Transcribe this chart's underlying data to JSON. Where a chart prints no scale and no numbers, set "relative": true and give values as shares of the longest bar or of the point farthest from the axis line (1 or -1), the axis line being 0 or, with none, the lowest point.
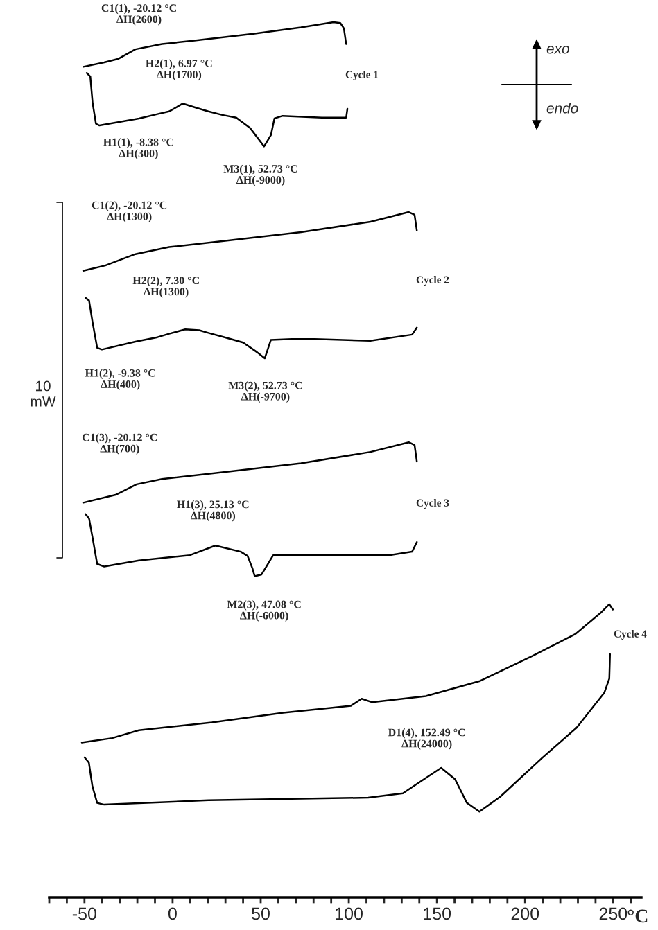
{
  "chart_data": {
    "type": "line",
    "relative": true,
    "xlabel": "°C",
    "xlim": [
      -70,
      266
    ],
    "tick_labels": "x",
    "xticks": [
      {
        "value": -70,
        "label": null
      },
      {
        "value": -60,
        "label": null
      },
      -50,
      {
        "value": -40,
        "label": null
      },
      {
        "value": -30,
        "label": null
      },
      {
        "value": -20,
        "label": null
      },
      {
        "value": -10,
        "label": null
      },
      0,
      {
        "value": 10,
        "label": null
      },
      {
        "value": 20,
        "label": null
      },
      {
        "value": 30,
        "label": null
      },
      {
        "value": 40,
        "label": null
      },
      50,
      {
        "value": 60,
        "label": null
      },
      {
        "value": 70,
        "label": null
      },
      {
        "value": 80,
        "label": null
      },
      {
        "value": 90,
        "label": null
      },
      100,
      {
        "value": 110,
        "label": null
      },
      {
        "value": 120,
        "label": null
      },
      {
        "value": 130,
        "label": null
      },
      {
        "value": 140,
        "label": null
      },
      150,
      {
        "value": 160,
        "label": null
      },
      {
        "value": 170,
        "label": null
      },
      {
        "value": 180,
        "label": null
      },
      {
        "value": 190,
        "label": null
      },
      200,
      {
        "value": 210,
        "label": null
      },
      {
        "value": 220,
        "label": null
      },
      {
        "value": 230,
        "label": null
      },
      {
        "value": 240,
        "label": null
      },
      250,
      {
        "value": 260,
        "label": null
      }
    ],
    "series": [
      {
        "color": "#000000",
        "x": [
          -50.7,
          -38.8,
          -31.0,
          -21.1,
          -6.0,
          12.4,
          46.6,
          72.9,
          91.3,
          95.2,
          97.2,
          98.5
        ],
        "values": [
          0.949,
          0.954,
          0.958,
          0.969,
          0.975,
          0.979,
          0.987,
          0.994,
          1.0,
          0.999,
          0.993,
          0.975
        ]
      },
      {
        "color": "#000000",
        "x": [
          -48.7,
          -46.7,
          -45.4,
          -43.5,
          -41.5,
          -19.1,
          -8.6,
          -2.0,
          5.8,
          13.7,
          20.3,
          28.2,
          36.1,
          44.0,
          51.9,
          55.8,
          57.8,
          62.4,
          84.7,
          98.5,
          99.2
        ],
        "values": [
          0.942,
          0.938,
          0.908,
          0.884,
          0.882,
          0.89,
          0.895,
          0.898,
          0.907,
          0.902,
          0.898,
          0.894,
          0.891,
          0.879,
          0.858,
          0.871,
          0.89,
          0.893,
          0.891,
          0.891,
          0.901
        ]
      },
      {
        "color": "#000000",
        "x": [
          -50.7,
          -38.2,
          -21.1,
          -2.0,
          33.4,
          72.9,
          112.3,
          134.0,
          137.3,
          138.6
        ],
        "values": [
          0.716,
          0.722,
          0.735,
          0.743,
          0.751,
          0.76,
          0.772,
          0.783,
          0.78,
          0.762
        ]
      },
      {
        "color": "#000000",
        "x": [
          -49.4,
          -47.4,
          -45.4,
          -42.8,
          -40.1,
          -21.1,
          -8.6,
          -2.0,
          7.2,
          15.1,
          20.3,
          29.5,
          40.0,
          47.9,
          52.3,
          55.8,
          67.6,
          80.6,
          112.2,
          135.9,
          138.6
        ],
        "values": [
          0.685,
          0.682,
          0.657,
          0.628,
          0.626,
          0.635,
          0.64,
          0.644,
          0.649,
          0.648,
          0.645,
          0.64,
          0.634,
          0.623,
          0.616,
          0.637,
          0.638,
          0.638,
          0.636,
          0.643,
          0.651
        ]
      },
      {
        "color": "#000000",
        "x": [
          -50.7,
          -32.3,
          -20.4,
          -6.0,
          33.4,
          72.9,
          112.3,
          134.0,
          137.3,
          138.6
        ],
        "values": [
          0.451,
          0.46,
          0.472,
          0.478,
          0.487,
          0.496,
          0.509,
          0.52,
          0.517,
          0.498
        ]
      },
      {
        "color": "#000000",
        "x": [
          -49.4,
          -47.4,
          -45.4,
          -42.8,
          -38.8,
          -19.1,
          9.8,
          24.3,
          38.7,
          42.6,
          45.3,
          46.6,
          50.5,
          53.2,
          57.1,
          72.9,
          122.8,
          135.9,
          138.6
        ],
        "values": [
          0.438,
          0.433,
          0.411,
          0.381,
          0.378,
          0.385,
          0.391,
          0.402,
          0.395,
          0.39,
          0.376,
          0.367,
          0.369,
          0.378,
          0.391,
          0.391,
          0.391,
          0.395,
          0.406
        ]
      },
      {
        "color": "#000000",
        "x": [
          -51.5,
          -34.3,
          -19.1,
          22.3,
          62.8,
          101.2,
          107.3,
          113.3,
          143.7,
          174.0,
          204.3,
          228.6,
          242.8,
          247.8,
          249.8
        ],
        "values": [
          0.177,
          0.182,
          0.191,
          0.2,
          0.211,
          0.219,
          0.227,
          0.223,
          0.23,
          0.247,
          0.276,
          0.301,
          0.325,
          0.335,
          0.329
        ]
      },
      {
        "color": "#000000",
        "x": [
          -49.9,
          -47.5,
          -45.5,
          -42.8,
          -38.8,
          20.3,
          111.0,
          130.7,
          142.6,
          152.4,
          160.3,
          167.0,
          174.1,
          185.9,
          209.5,
          229.3,
          245.0,
          247.8,
          248.2
        ],
        "values": [
          0.16,
          0.154,
          0.127,
          0.108,
          0.106,
          0.111,
          0.114,
          0.119,
          0.135,
          0.148,
          0.135,
          0.108,
          0.098,
          0.115,
          0.159,
          0.194,
          0.234,
          0.25,
          0.278
        ]
      }
    ],
    "annotations": [
      {
        "text": "C1(1), -20.12 °C\nΔH(2600)",
        "x": -20.12,
        "y": 0.969
      },
      {
        "text": "H2(1), 6.97 °C\nΔH(1700)",
        "x": 6.97,
        "y": 0.907
      },
      {
        "text": "H1(1), -8.38 °C\nΔH(300)",
        "x": -8.38,
        "y": 0.895
      },
      {
        "text": "M3(1), 52.73 °C\nΔH(-9000)",
        "x": 52.73,
        "y": 0.858
      },
      {
        "text": "C1(2), -20.12 °C\nΔH(1300)",
        "x": -20.12,
        "y": 0.735
      },
      {
        "text": "H2(2), 7.30 °C\nΔH(1300)",
        "x": 7.3,
        "y": 0.649
      },
      {
        "text": "H1(2), -9.38 °C\nΔH(400)",
        "x": -9.38,
        "y": 0.64
      },
      {
        "text": "M3(2), 52.73 °C\nΔH(-9700)",
        "x": 52.73,
        "y": 0.616
      },
      {
        "text": "C1(3), -20.12 °C\nΔH(700)",
        "x": -20.12,
        "y": 0.472
      },
      {
        "text": "H1(3), 25.13 °C\nΔH(4800)",
        "x": 25.13,
        "y": 0.402
      },
      {
        "text": "M2(3), 47.08 °C\nΔH(-6000)",
        "x": 47.08,
        "y": 0.367
      },
      {
        "text": "D1(4), 152.49 °C\nΔH(24000)",
        "x": 152.49,
        "y": 0.148
      },
      "Cycle 1",
      "Cycle 2",
      "Cycle 3",
      "Cycle 4",
      "exo",
      "endo",
      "10\nmW"
    ]
  }
}
